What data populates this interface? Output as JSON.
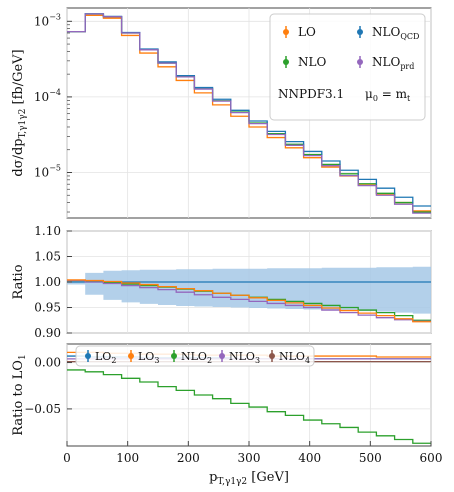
{
  "chart_data": [
    {
      "type": "line",
      "step": true,
      "ylabel": "dσ/dp_T,γ1γ2 [fb/GeV]",
      "yscale": "log",
      "ylim": [
        2.5e-06,
        0.0015
      ],
      "xlim": [
        0,
        600
      ],
      "grid": true,
      "y_tick_labels": [
        "10",
        "10",
        "10"
      ],
      "y_tick_exponents": [
        "−3",
        "−4",
        "−5"
      ],
      "legend_position": "top-right",
      "annotations": [
        "NNPDF3.1",
        "μ0 = m_t"
      ],
      "bin_edges": [
        0,
        30,
        60,
        90,
        120,
        150,
        180,
        210,
        240,
        270,
        300,
        330,
        360,
        390,
        420,
        450,
        480,
        510,
        540,
        570,
        600
      ],
      "series": [
        {
          "name": "LO",
          "color": "#ff7f0e",
          "values": [
            0.00073,
            0.0012,
            0.0011,
            0.00065,
            0.00038,
            0.00025,
            0.000165,
            0.000113,
            7.85e-05,
            5.55e-05,
            4e-05,
            2.9e-05,
            2.12e-05,
            1.57e-05,
            1.18e-05,
            9e-06,
            6.8e-06,
            5.2e-06,
            4e-06,
            3.1e-06
          ]
        },
        {
          "name": "NLO",
          "color": "#2ca02c",
          "values": [
            0.00073,
            0.00125,
            0.00115,
            0.0007,
            0.00042,
            0.00028,
            0.000185,
            0.000128,
            8.9e-05,
            6.3e-05,
            4.52e-05,
            3.26e-05,
            2.36e-05,
            1.73e-05,
            1.28e-05,
            9.6e-06,
            7.1e-06,
            5.3e-06,
            4e-06,
            3e-06
          ]
        },
        {
          "name": "NLO_QCD",
          "color": "#1f77b4",
          "values": [
            0.00073,
            0.00126,
            0.00116,
            0.00071,
            0.00043,
            0.00029,
            0.000191,
            0.000133,
            9.3e-05,
            6.65e-05,
            4.8e-05,
            3.5e-05,
            2.56e-05,
            1.9e-05,
            1.42e-05,
            1.07e-05,
            8.1e-06,
            6.2e-06,
            4.7e-06,
            3.6e-06
          ]
        },
        {
          "name": "NLO_prd",
          "color": "#9467bd",
          "values": [
            0.00073,
            0.00125,
            0.00115,
            0.0007,
            0.00042,
            0.00028,
            0.000184,
            0.000127,
            8.8e-05,
            6.2e-05,
            4.43e-05,
            3.18e-05,
            2.29e-05,
            1.67e-05,
            1.23e-05,
            9.1e-06,
            6.7e-06,
            5e-06,
            3.8e-06,
            2.9e-06
          ]
        }
      ]
    },
    {
      "type": "line",
      "step": true,
      "ylabel": "Ratio",
      "ylim": [
        0.9,
        1.1
      ],
      "xlim": [
        0,
        600
      ],
      "grid": true,
      "y_ticks": [
        "0.90",
        "0.95",
        "1.00",
        "1.05",
        "1.10"
      ],
      "band": {
        "color": "#a6c8e6",
        "lower": [
          0.995,
          0.975,
          0.965,
          0.96,
          0.957,
          0.955,
          0.953,
          0.952,
          0.951,
          0.95,
          0.949,
          0.948,
          0.947,
          0.946,
          0.945,
          0.944,
          0.943,
          0.942,
          0.94,
          0.938
        ],
        "upper": [
          1.005,
          1.018,
          1.022,
          1.023,
          1.024,
          1.024,
          1.025,
          1.025,
          1.026,
          1.026,
          1.026,
          1.027,
          1.027,
          1.027,
          1.028,
          1.028,
          1.028,
          1.029,
          1.029,
          1.03
        ]
      },
      "series": [
        {
          "name": "NLO_QCD",
          "color": "#1f77b4",
          "values": [
            1.0,
            1.0,
            1.0,
            1.0,
            1.0,
            1.0,
            1.0,
            1.0,
            1.0,
            1.0,
            1.0,
            1.0,
            1.0,
            1.0,
            1.0,
            1.0,
            1.0,
            1.0,
            1.0,
            1.0
          ]
        },
        {
          "name": "NLO",
          "color": "#2ca02c",
          "values": [
            1.003,
            1.001,
            0.999,
            0.996,
            0.993,
            0.99,
            0.986,
            0.982,
            0.978,
            0.974,
            0.97,
            0.966,
            0.962,
            0.958,
            0.954,
            0.95,
            0.945,
            0.94,
            0.934,
            0.925
          ]
        },
        {
          "name": "NLO_prd",
          "color": "#9467bd",
          "values": [
            1.003,
            1.0,
            0.997,
            0.993,
            0.989,
            0.985,
            0.98,
            0.975,
            0.97,
            0.966,
            0.962,
            0.958,
            0.954,
            0.95,
            0.945,
            0.94,
            0.935,
            0.93,
            0.926,
            0.923
          ]
        },
        {
          "name": "LO",
          "color": "#ff7f0e",
          "values": [
            1.004,
            1.003,
            1.001,
            0.998,
            0.995,
            0.991,
            0.987,
            0.983,
            0.978,
            0.974,
            0.969,
            0.964,
            0.959,
            0.954,
            0.949,
            0.944,
            0.939,
            0.934,
            0.928,
            0.922
          ]
        }
      ]
    },
    {
      "type": "line",
      "step": true,
      "ylabel": "Ratio to LO1",
      "xlabel": "p_T,γ1γ2 [GeV]",
      "xlim": [
        0,
        600
      ],
      "ylim": [
        -0.09,
        0.02
      ],
      "grid": true,
      "x_ticks": [
        0,
        100,
        200,
        300,
        400,
        500,
        600
      ],
      "y_ticks": [
        "−0.05",
        "0.00"
      ],
      "legend_position": "top",
      "series": [
        {
          "name": "LO_2",
          "color": "#1f77b4",
          "values": [
            0.007,
            0.006,
            0.006,
            0.006,
            0.005,
            0.005,
            0.005,
            0.005,
            0.005,
            0.004,
            0.004,
            0.004,
            0.004,
            0.004,
            0.004,
            0.004,
            0.004,
            0.004,
            0.004,
            0.004
          ]
        },
        {
          "name": "LO_3",
          "color": "#ff7f0e",
          "values": [
            0.011,
            0.011,
            0.01,
            0.01,
            0.009,
            0.009,
            0.009,
            0.008,
            0.008,
            0.008,
            0.008,
            0.007,
            0.007,
            0.007,
            0.007,
            0.007,
            0.007,
            0.006,
            0.006,
            0.006
          ]
        },
        {
          "name": "NLO_2",
          "color": "#2ca02c",
          "values": [
            -0.008,
            -0.01,
            -0.013,
            -0.017,
            -0.021,
            -0.026,
            -0.03,
            -0.035,
            -0.039,
            -0.044,
            -0.048,
            -0.053,
            -0.057,
            -0.062,
            -0.066,
            -0.07,
            -0.075,
            -0.079,
            -0.083,
            -0.087
          ]
        },
        {
          "name": "NLO_3",
          "color": "#9467bd",
          "values": [
            0.004,
            0.004,
            0.004,
            0.004,
            0.004,
            0.004,
            0.004,
            0.004,
            0.004,
            0.004,
            0.004,
            0.004,
            0.004,
            0.004,
            0.004,
            0.004,
            0.004,
            0.004,
            0.004,
            0.004
          ]
        },
        {
          "name": "NLO_4",
          "color": "#8c564b",
          "values": [
            0.001,
            0.001,
            0.001,
            0.001,
            0.001,
            0.001,
            0.001,
            0.001,
            0.001,
            0.001,
            0.001,
            0.001,
            0.001,
            0.001,
            0.001,
            0.001,
            0.001,
            0.001,
            0.001,
            0.001
          ]
        }
      ]
    }
  ]
}
